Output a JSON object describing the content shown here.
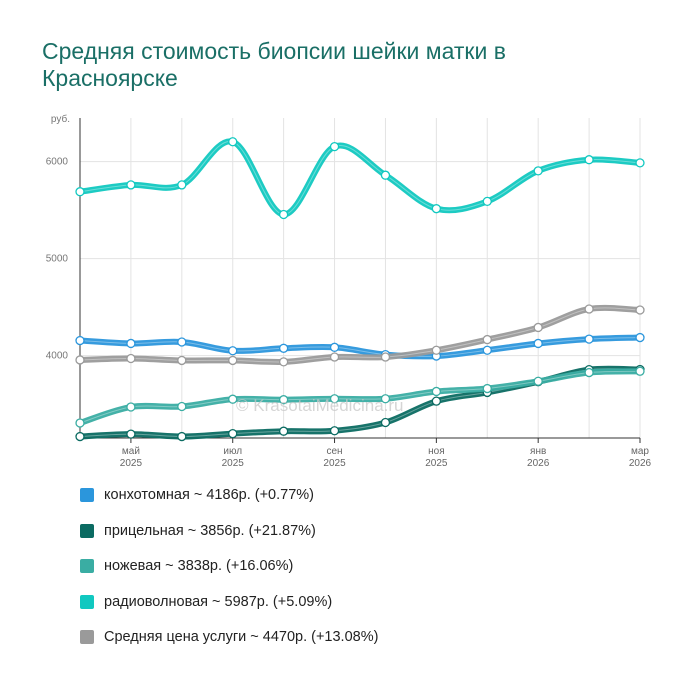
{
  "title": "Средняя стоимость биопсии шейки матки в Красноярске",
  "watermark": "© KrasotaiMedicina.ru",
  "chart_data": {
    "type": "line",
    "title": "Средняя стоимость биопсии шейки матки в Красноярске",
    "ylabel": "руб.",
    "ylim": [
      3150,
      6450
    ],
    "yticks": [
      4000,
      5000,
      6000
    ],
    "x_count": 12,
    "x_ticks": [
      {
        "index": 1,
        "line1": "май",
        "line2": "2025"
      },
      {
        "index": 3,
        "line1": "июл",
        "line2": "2025"
      },
      {
        "index": 5,
        "line1": "сен",
        "line2": "2025"
      },
      {
        "index": 7,
        "line1": "ноя",
        "line2": "2025"
      },
      {
        "index": 9,
        "line1": "янв",
        "line2": "2026"
      },
      {
        "index": 11,
        "line1": "мар",
        "line2": "2026"
      }
    ],
    "series": [
      {
        "name": "конхотомная",
        "color": "#2b96dc",
        "legend": "конхотомная ~ 4186р. (+0.77%)",
        "values": [
          4155,
          4125,
          4140,
          4050,
          4075,
          4085,
          4010,
          3995,
          4055,
          4125,
          4170,
          4186
        ]
      },
      {
        "name": "прицельная",
        "color": "#0b6b62",
        "legend": "прицельная ~ 3856р. (+21.87%)",
        "values": [
          3165,
          3190,
          3165,
          3195,
          3220,
          3225,
          3310,
          3530,
          3620,
          3730,
          3855,
          3856
        ]
      },
      {
        "name": "ножевая",
        "color": "#3aada3",
        "legend": "ножевая ~ 3838р. (+16.06%)",
        "values": [
          3305,
          3470,
          3475,
          3550,
          3545,
          3555,
          3555,
          3630,
          3660,
          3735,
          3825,
          3838
        ]
      },
      {
        "name": "радиоволновая",
        "color": "#11c8c0",
        "legend": "радиоволновая ~ 5987р. (+5.09%)",
        "values": [
          5690,
          5760,
          5760,
          6205,
          5455,
          6155,
          5860,
          5515,
          5590,
          5905,
          6020,
          5987
        ]
      },
      {
        "name": "Средняя цена услуги",
        "color": "#9a9a9a",
        "legend": "Средняя цена услуги ~ 4470р. (+13.08%)",
        "values": [
          3955,
          3970,
          3950,
          3950,
          3935,
          3985,
          3985,
          4055,
          4165,
          4290,
          4480,
          4470
        ]
      }
    ]
  }
}
